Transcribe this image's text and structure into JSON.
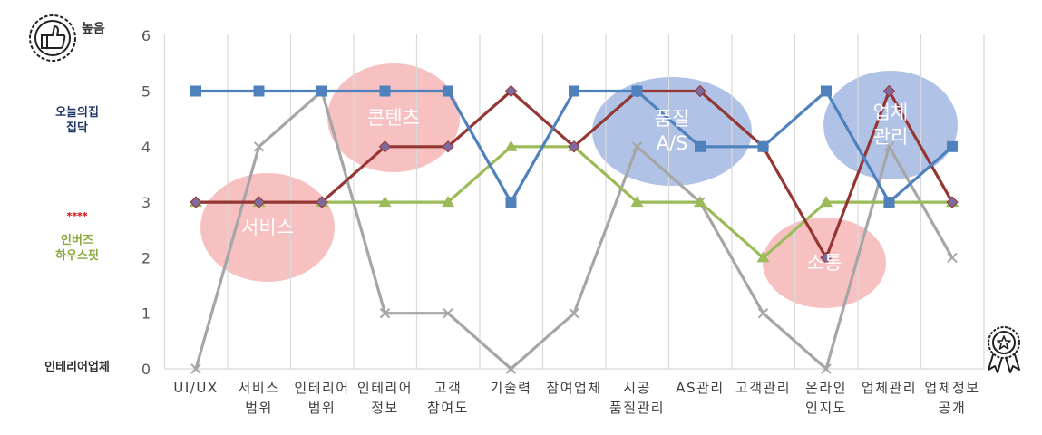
{
  "left_labels": {
    "high": "높음",
    "series_a": "오늘의집\n집닥",
    "stars": "****",
    "series_c": "인버즈\n하우스핏",
    "low": "인테리어업체"
  },
  "icons": [
    "thumbs-up-badge-icon",
    "award-ribbon-icon"
  ],
  "highlights": [
    {
      "label": "서비스",
      "color": "#f4a6a6"
    },
    {
      "label": "콘텐츠",
      "color": "#f4a6a6"
    },
    {
      "label": "품질\nA/S",
      "color": "#8faadc"
    },
    {
      "label": "소통",
      "color": "#f4a6a6"
    },
    {
      "label": "업체\n관리",
      "color": "#8faadc"
    }
  ],
  "chart_data": {
    "type": "line",
    "categories": [
      "UI/UX",
      "서비스\n범위",
      "인테리어\n범위",
      "인테리어\n정보",
      "고객\n참여도",
      "기술력",
      "참여업체",
      "시공\n품질관리",
      "AS관리",
      "고객관리",
      "온라인\n인지도",
      "업체관리",
      "업체정보\n공개"
    ],
    "ylim": [
      0,
      6
    ],
    "yticks": [
      0,
      1,
      2,
      3,
      4,
      5,
      6
    ],
    "grid": "vertical",
    "series": [
      {
        "color": "#4f81bd",
        "marker": "square",
        "values": [
          5,
          5,
          5,
          5,
          5,
          3,
          5,
          5,
          4,
          4,
          5,
          3,
          4
        ]
      },
      {
        "color": "#943634",
        "marker": "diamond",
        "values": [
          3,
          3,
          3,
          4,
          4,
          5,
          4,
          5,
          5,
          4,
          2,
          5,
          3
        ]
      },
      {
        "color": "#9bbb59",
        "marker": "triangle",
        "values": [
          3,
          3,
          3,
          3,
          3,
          4,
          4,
          3,
          3,
          2,
          3,
          3,
          3
        ]
      },
      {
        "color": "#a6a6a6",
        "marker": "x",
        "values": [
          0,
          4,
          5,
          1,
          1,
          0,
          1,
          4,
          3,
          1,
          0,
          4,
          2
        ]
      }
    ]
  }
}
